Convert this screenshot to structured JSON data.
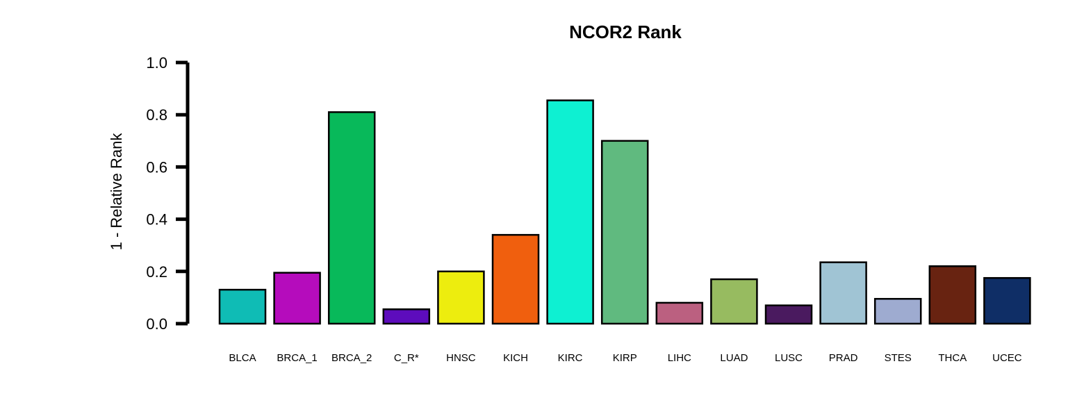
{
  "chart_data": {
    "type": "bar",
    "title": "NCOR2 Rank",
    "ylabel": "1 - Relative Rank",
    "xlabel": "",
    "ylim": [
      0,
      1.0
    ],
    "yticks": [
      "0.0",
      "0.2",
      "0.4",
      "0.6",
      "0.8",
      "1.0"
    ],
    "categories": [
      "BLCA",
      "BRCA_1",
      "BRCA_2",
      "C_R*",
      "HNSC",
      "KICH",
      "KIRC",
      "KIRP",
      "LIHC",
      "LUAD",
      "LUSC",
      "PRAD",
      "STES",
      "THCA",
      "UCEC"
    ],
    "values": [
      0.13,
      0.195,
      0.81,
      0.055,
      0.2,
      0.34,
      0.855,
      0.7,
      0.08,
      0.17,
      0.07,
      0.235,
      0.095,
      0.22,
      0.175
    ],
    "colors": [
      "#0fbcb5",
      "#b50cbc",
      "#08b95a",
      "#5d0cbc",
      "#eded0e",
      "#f05f0e",
      "#0ef0d2",
      "#60ba7f",
      "#bb6080",
      "#97bb60",
      "#4a1a5f",
      "#a0c4d4",
      "#9eabd0",
      "#682311",
      "#0f2e66"
    ],
    "grid": false,
    "legend": "none"
  }
}
